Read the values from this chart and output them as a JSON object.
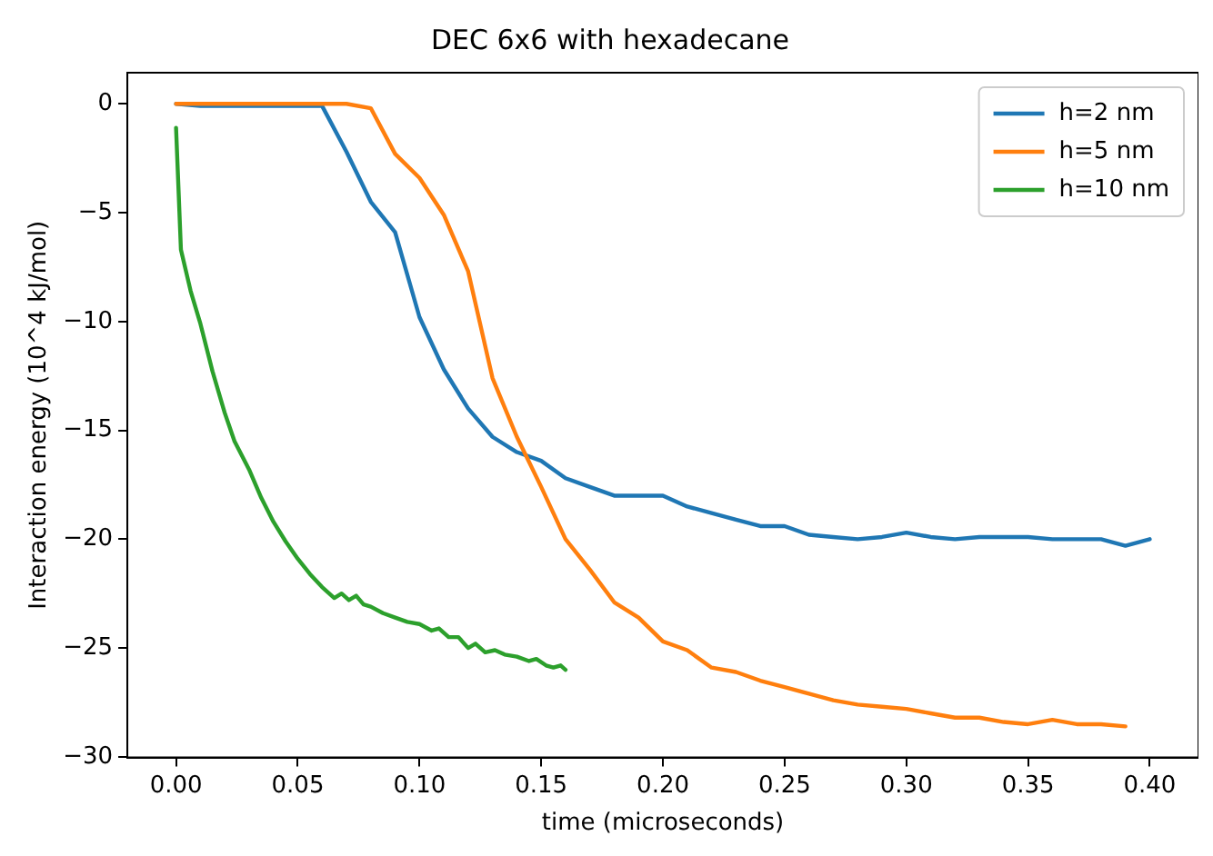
{
  "chart_data": {
    "type": "line",
    "title": "DEC 6x6 with hexadecane",
    "xlabel": "time (microseconds)",
    "ylabel": "Interaction energy (10^4 kJ/mol)",
    "xlim": [
      -0.02,
      0.42
    ],
    "ylim": [
      -30.03,
      1.43
    ],
    "xticks": [
      {
        "value": 0,
        "label": "0.00"
      },
      {
        "value": 0.05,
        "label": "0.05"
      },
      {
        "value": 0.1,
        "label": "0.10"
      },
      {
        "value": 0.15,
        "label": "0.15"
      },
      {
        "value": 0.2,
        "label": "0.20"
      },
      {
        "value": 0.25,
        "label": "0.25"
      },
      {
        "value": 0.3,
        "label": "0.30"
      },
      {
        "value": 0.35,
        "label": "0.35"
      },
      {
        "value": 0.4,
        "label": "0.40"
      }
    ],
    "yticks": [
      0,
      {
        "value": -5,
        "label": "−5"
      },
      {
        "value": -10,
        "label": "−10"
      },
      {
        "value": -15,
        "label": "−15"
      },
      {
        "value": -20,
        "label": "−20"
      },
      {
        "value": -25,
        "label": "−25"
      },
      {
        "value": -30,
        "label": "−30"
      }
    ],
    "grid": false,
    "legend": "top right",
    "marker": "none",
    "line_style": "solid",
    "series": [
      {
        "name": "h=2 nm",
        "color": "#1f77b4",
        "x": [
          0,
          0.01,
          0.02,
          0.03,
          0.04,
          0.05,
          0.06,
          0.07,
          0.08,
          0.09,
          0.1,
          0.11,
          0.12,
          0.13,
          0.14,
          0.15,
          0.16,
          0.17,
          0.18,
          0.19,
          0.2,
          0.21,
          0.22,
          0.23,
          0.24,
          0.25,
          0.26,
          0.27,
          0.28,
          0.29,
          0.3,
          0.31,
          0.32,
          0.33,
          0.34,
          0.35,
          0.36,
          0.37,
          0.38,
          0.39,
          0.4
        ],
        "values": [
          0,
          -0.1,
          -0.1,
          -0.1,
          -0.1,
          -0.1,
          -0.1,
          -2.2,
          -4.5,
          -5.9,
          -9.8,
          -12.2,
          -14,
          -15.3,
          -16,
          -16.4,
          -17.2,
          -17.6,
          -18,
          -18,
          -18,
          -18.5,
          -18.8,
          -19.1,
          -19.4,
          -19.4,
          -19.8,
          -19.9,
          -20,
          -19.9,
          -19.7,
          -19.9,
          -20,
          -19.9,
          -19.9,
          -19.9,
          -20,
          -20,
          -20,
          -20.3,
          -20
        ]
      },
      {
        "name": "h=5 nm",
        "color": "#ff7f0e",
        "x": [
          0,
          0.01,
          0.02,
          0.03,
          0.04,
          0.05,
          0.06,
          0.07,
          0.08,
          0.09,
          0.1,
          0.11,
          0.12,
          0.13,
          0.14,
          0.15,
          0.16,
          0.17,
          0.18,
          0.19,
          0.2,
          0.21,
          0.22,
          0.23,
          0.24,
          0.25,
          0.26,
          0.27,
          0.28,
          0.29,
          0.3,
          0.31,
          0.32,
          0.33,
          0.34,
          0.35,
          0.36,
          0.37,
          0.38,
          0.39
        ],
        "values": [
          0,
          0,
          0,
          0,
          0,
          0,
          0,
          0,
          -0.2,
          -2.3,
          -3.4,
          -5.1,
          -7.7,
          -12.6,
          -15.3,
          -17.6,
          -20,
          -21.4,
          -22.9,
          -23.6,
          -24.7,
          -25.1,
          -25.9,
          -26.1,
          -26.5,
          -26.8,
          -27.1,
          -27.4,
          -27.6,
          -27.7,
          -27.8,
          -28,
          -28.2,
          -28.2,
          -28.4,
          -28.5,
          -28.3,
          -28.5,
          -28.5,
          -28.6
        ]
      },
      {
        "name": "h=10 nm",
        "color": "#2ca02c",
        "x": [
          0,
          0.002,
          0.006,
          0.01,
          0.015,
          0.02,
          0.024,
          0.03,
          0.035,
          0.04,
          0.045,
          0.05,
          0.055,
          0.06,
          0.065,
          0.068,
          0.071,
          0.074,
          0.077,
          0.08,
          0.085,
          0.09,
          0.095,
          0.1,
          0.105,
          0.108,
          0.112,
          0.116,
          0.12,
          0.123,
          0.127,
          0.131,
          0.135,
          0.14,
          0.145,
          0.148,
          0.152,
          0.155,
          0.158,
          0.16
        ],
        "values": [
          -1.1,
          -6.7,
          -8.6,
          -10.1,
          -12.3,
          -14.2,
          -15.5,
          -16.8,
          -18.1,
          -19.2,
          -20.1,
          -20.9,
          -21.6,
          -22.2,
          -22.7,
          -22.5,
          -22.8,
          -22.6,
          -23,
          -23.1,
          -23.4,
          -23.6,
          -23.8,
          -23.9,
          -24.2,
          -24.1,
          -24.5,
          -24.5,
          -25,
          -24.8,
          -25.2,
          -25.1,
          -25.3,
          -25.4,
          -25.6,
          -25.5,
          -25.8,
          -25.9,
          -25.8,
          -26
        ]
      }
    ]
  }
}
